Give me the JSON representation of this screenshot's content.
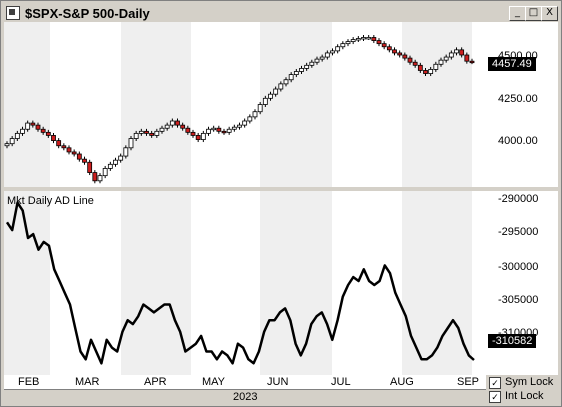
{
  "window": {
    "title": "$SPX-S&P 500-Daily",
    "buttons": {
      "minimize": "_",
      "maximize": "□",
      "close": "X"
    }
  },
  "price_panel": {
    "y_ticks": [
      "4500.00",
      "4250.00",
      "4000.00"
    ],
    "last_value": "4457.49"
  },
  "ad_panel": {
    "label": "Mkt Daily AD Line",
    "y_ticks": [
      "-290000",
      "-295000",
      "-300000",
      "-305000",
      "-310000"
    ],
    "last_value": "-310582"
  },
  "x_axis": {
    "months": [
      "FEB",
      "MAR",
      "APR",
      "MAY",
      "JUN",
      "JUL",
      "AUG",
      "SEP"
    ],
    "year": "2023"
  },
  "options": {
    "sym_lock": {
      "label": "Sym Lock",
      "checked": true
    },
    "int_lock": {
      "label": "Int Lock",
      "checked": true
    }
  },
  "colors": {
    "down_candle": "#cc1f1f",
    "up_candle": "#ffffff",
    "line": "#000000",
    "shade": "#efefef"
  },
  "chart_data": [
    {
      "type": "candlestick",
      "title": "$SPX-S&P 500-Daily",
      "ylim": [
        3850,
        4650
      ],
      "x_ticks": [
        "FEB",
        "MAR",
        "APR",
        "MAY",
        "JUN",
        "JUL",
        "AUG",
        "SEP"
      ],
      "close_series": [
        4060,
        4085,
        4110,
        4130,
        4160,
        4150,
        4130,
        4115,
        4100,
        4075,
        4050,
        4040,
        4020,
        4010,
        3985,
        3970,
        3920,
        3880,
        3905,
        3940,
        3960,
        3980,
        4000,
        4040,
        4085,
        4110,
        4120,
        4110,
        4100,
        4120,
        4135,
        4150,
        4170,
        4150,
        4135,
        4115,
        4100,
        4080,
        4110,
        4130,
        4135,
        4120,
        4115,
        4130,
        4140,
        4150,
        4170,
        4190,
        4215,
        4250,
        4280,
        4300,
        4325,
        4350,
        4370,
        4395,
        4410,
        4425,
        4440,
        4455,
        4470,
        4480,
        4500,
        4510,
        4530,
        4545,
        4555,
        4565,
        4570,
        4575,
        4575,
        4560,
        4545,
        4530,
        4515,
        4500,
        4490,
        4475,
        4455,
        4440,
        4415,
        4400,
        4420,
        4445,
        4465,
        4480,
        4500,
        4515,
        4490,
        4460,
        4457.49
      ],
      "last_value": 4457.49
    },
    {
      "type": "line",
      "name": "Mkt Daily AD Line",
      "ylim": [
        -312500,
        -289000
      ],
      "values": [
        -293000,
        -294000,
        -290500,
        -291500,
        -295000,
        -294500,
        -296500,
        -295500,
        -296000,
        -299000,
        -300500,
        -302000,
        -303500,
        -306500,
        -309500,
        -310500,
        -308000,
        -309500,
        -311000,
        -308000,
        -309000,
        -309500,
        -307000,
        -305500,
        -306000,
        -305000,
        -303500,
        -304000,
        -304500,
        -304000,
        -303500,
        -303500,
        -305500,
        -307000,
        -309500,
        -309000,
        -308500,
        -307500,
        -309500,
        -309500,
        -310500,
        -309500,
        -310000,
        -311000,
        -308500,
        -309000,
        -310500,
        -311000,
        -309500,
        -307000,
        -305500,
        -305500,
        -304500,
        -304000,
        -305500,
        -308500,
        -310000,
        -308500,
        -306000,
        -305000,
        -304500,
        -306000,
        -308000,
        -305500,
        -302500,
        -301000,
        -300000,
        -300500,
        -299000,
        -300500,
        -301000,
        -300500,
        -298500,
        -299500,
        -302000,
        -303500,
        -305000,
        -307500,
        -309000,
        -310500,
        -310500,
        -310000,
        -309000,
        -307500,
        -306500,
        -305500,
        -306500,
        -308500,
        -310000,
        -310582
      ],
      "last_value": -310582
    }
  ]
}
